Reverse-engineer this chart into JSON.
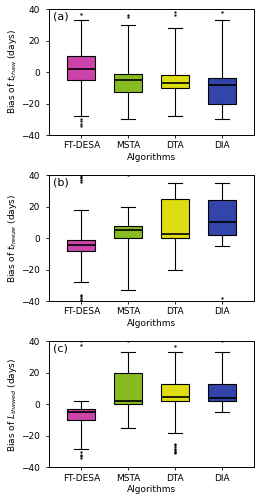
{
  "subplot_labels": [
    "(a)",
    "(b)",
    "(c)"
  ],
  "ylabel_labels": [
    "Bias of $t_{thaw}$ (days)",
    "Bias of $t_{freeze}$ (days)",
    "Bias of $L_{thawed}$ (days)"
  ],
  "xlabel": "Algorithms",
  "x_labels": [
    "FT-DESA",
    "MSTA",
    "DTA",
    "DIA"
  ],
  "colors": [
    "#CC44AA",
    "#88BB22",
    "#DDDD11",
    "#3344AA"
  ],
  "ylim": [
    -40,
    40
  ],
  "yticks": [
    -40,
    -20,
    0,
    20,
    40
  ],
  "boxes_a": {
    "FT-DESA": {
      "q1": -5,
      "median": 2,
      "q3": 10,
      "whislo": -28,
      "whishi": 33,
      "fliers_low": [
        -30,
        -31,
        -33,
        -34
      ],
      "fliers_high": [
        37
      ]
    },
    "MSTA": {
      "q1": -13,
      "median": -5,
      "q3": -1,
      "whislo": -30,
      "whishi": 30,
      "fliers_low": [],
      "fliers_high": [
        35,
        36
      ]
    },
    "DTA": {
      "q1": -10,
      "median": -7,
      "q3": -2,
      "whislo": -28,
      "whishi": 28,
      "fliers_low": [],
      "fliers_high": [
        36,
        38
      ]
    },
    "DIA": {
      "q1": -20,
      "median": -8,
      "q3": -4,
      "whislo": -30,
      "whishi": 33,
      "fliers_low": [],
      "fliers_high": [
        38
      ]
    }
  },
  "boxes_b": {
    "FT-DESA": {
      "q1": -8,
      "median": -4,
      "q3": -1,
      "whislo": -28,
      "whishi": 18,
      "fliers_low": [
        -36,
        -37,
        -38,
        -39,
        -40,
        -40
      ],
      "fliers_high": [
        36,
        37,
        38,
        39,
        40,
        40
      ]
    },
    "MSTA": {
      "q1": 0,
      "median": 5,
      "q3": 8,
      "whislo": -33,
      "whishi": 20,
      "fliers_low": [],
      "fliers_high": [
        40
      ]
    },
    "DTA": {
      "q1": 0,
      "median": 3,
      "q3": 25,
      "whislo": -20,
      "whishi": 35,
      "fliers_low": [],
      "fliers_high": []
    },
    "DIA": {
      "q1": 2,
      "median": 10,
      "q3": 24,
      "whislo": -5,
      "whishi": 35,
      "fliers_low": [
        -38
      ],
      "fliers_high": []
    }
  },
  "boxes_c": {
    "FT-DESA": {
      "q1": -10,
      "median": -5,
      "q3": -3,
      "whislo": -28,
      "whishi": 2,
      "fliers_low": [
        -30,
        -32,
        -33,
        -34
      ],
      "fliers_high": [
        38,
        40
      ]
    },
    "MSTA": {
      "q1": 0,
      "median": 2,
      "q3": 20,
      "whislo": -15,
      "whishi": 33,
      "fliers_low": [],
      "fliers_high": [
        40
      ]
    },
    "DTA": {
      "q1": 2,
      "median": 5,
      "q3": 13,
      "whislo": -18,
      "whishi": 33,
      "fliers_low": [
        -25,
        -26,
        -27,
        -28,
        -29,
        -30,
        -30,
        -31
      ],
      "fliers_high": [
        37
      ]
    },
    "DIA": {
      "q1": 2,
      "median": 4,
      "q3": 13,
      "whislo": -5,
      "whishi": 33,
      "fliers_low": [],
      "fliers_high": [
        40
      ]
    }
  }
}
